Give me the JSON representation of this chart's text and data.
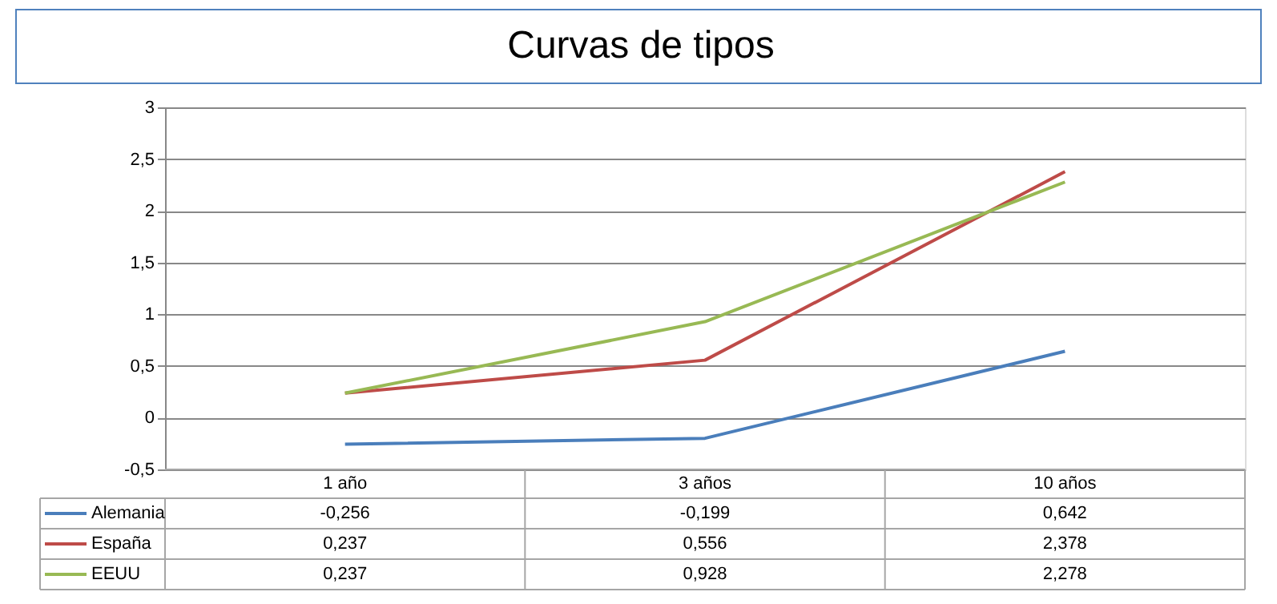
{
  "chart_data": {
    "type": "line",
    "title": "Curvas de tipos",
    "categories": [
      "1 año",
      "3 años",
      "10 años"
    ],
    "series": [
      {
        "name": "Alemania",
        "color": "#4a7ebb",
        "values": [
          -0.256,
          -0.199,
          0.642
        ],
        "value_labels": [
          "-0,256",
          "-0,199",
          "0,642"
        ]
      },
      {
        "name": "España",
        "color": "#be4b48",
        "values": [
          0.237,
          0.556,
          2.378
        ],
        "value_labels": [
          "0,237",
          "0,556",
          "2,378"
        ]
      },
      {
        "name": "EEUU",
        "color": "#98b954",
        "values": [
          0.237,
          0.928,
          2.278
        ],
        "value_labels": [
          "0,237",
          "0,928",
          "2,278"
        ]
      }
    ],
    "ylim": [
      -0.5,
      3
    ],
    "yticks": [
      {
        "value": -0.5,
        "label": "-0,5"
      },
      0,
      {
        "value": 0.5,
        "label": "0,5"
      },
      1,
      {
        "value": 1.5,
        "label": "1,5"
      },
      2,
      {
        "value": 2.5,
        "label": "2,5"
      },
      3
    ],
    "grid": "y",
    "legend": "bottom left",
    "marker": "none",
    "line_style": "solid"
  }
}
